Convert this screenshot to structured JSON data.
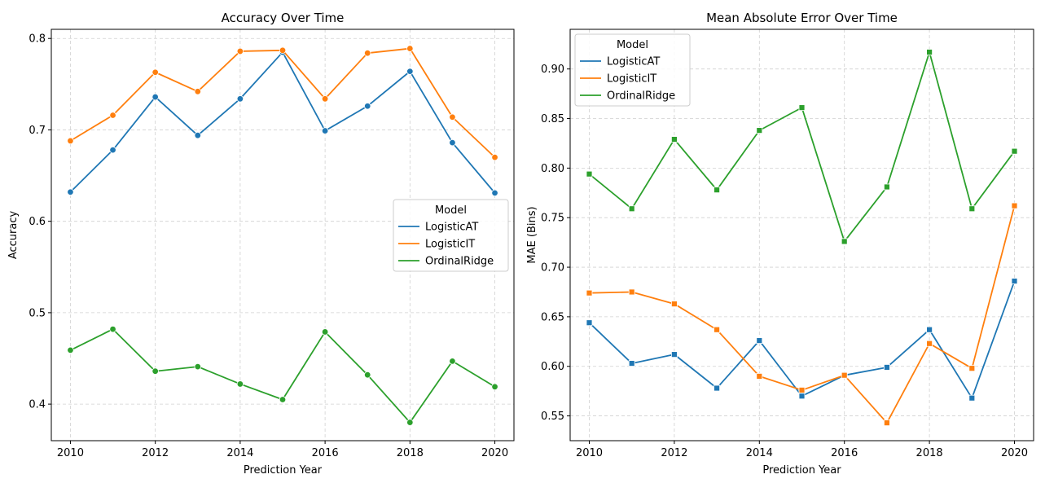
{
  "chart_data": [
    {
      "type": "line",
      "title": "Accuracy Over Time",
      "xlabel": "Prediction Year",
      "ylabel": "Accuracy",
      "xlim": [
        2009.55,
        2020.45
      ],
      "ylim": [
        0.36,
        0.81
      ],
      "xticks": [
        2010,
        2012,
        2014,
        2016,
        2018,
        2020
      ],
      "yticks": [
        0.4,
        0.5,
        0.6,
        0.7,
        0.8
      ],
      "ytick_labels": [
        "0.4",
        "0.5",
        "0.6",
        "0.7",
        "0.8"
      ],
      "grid": true,
      "marker": "circle",
      "legend": {
        "title": "Model",
        "placement": "center-right"
      },
      "x": [
        2010,
        2011,
        2012,
        2013,
        2014,
        2015,
        2016,
        2017,
        2018,
        2019,
        2020
      ],
      "series": [
        {
          "name": "LogisticAT",
          "color": "#1f77b4",
          "values": [
            0.632,
            0.678,
            0.736,
            0.694,
            0.734,
            0.785,
            0.699,
            0.726,
            0.764,
            0.686,
            0.631
          ]
        },
        {
          "name": "LogisticIT",
          "color": "#ff7f0e",
          "values": [
            0.688,
            0.716,
            0.763,
            0.742,
            0.786,
            0.787,
            0.734,
            0.784,
            0.789,
            0.714,
            0.67
          ]
        },
        {
          "name": "OrdinalRidge",
          "color": "#2ca02c",
          "values": [
            0.459,
            0.482,
            0.436,
            0.441,
            0.422,
            0.405,
            0.479,
            0.432,
            0.38,
            0.447,
            0.419
          ]
        }
      ]
    },
    {
      "type": "line",
      "title": "Mean Absolute Error Over Time",
      "xlabel": "Prediction Year",
      "ylabel": "MAE (Bins)",
      "xlim": [
        2009.55,
        2020.45
      ],
      "ylim": [
        0.525,
        0.94
      ],
      "xticks": [
        2010,
        2012,
        2014,
        2016,
        2018,
        2020
      ],
      "yticks": [
        0.55,
        0.6,
        0.65,
        0.7,
        0.75,
        0.8,
        0.85,
        0.9
      ],
      "ytick_labels": [
        "0.55",
        "0.60",
        "0.65",
        "0.70",
        "0.75",
        "0.80",
        "0.85",
        "0.90"
      ],
      "grid": true,
      "marker": "square",
      "legend": {
        "title": "Model",
        "placement": "top-left"
      },
      "x": [
        2010,
        2011,
        2012,
        2013,
        2014,
        2015,
        2016,
        2017,
        2018,
        2019,
        2020
      ],
      "series": [
        {
          "name": "LogisticAT",
          "color": "#1f77b4",
          "values": [
            0.644,
            0.603,
            0.612,
            0.578,
            0.626,
            0.57,
            0.591,
            0.599,
            0.637,
            0.568,
            0.686
          ]
        },
        {
          "name": "LogisticIT",
          "color": "#ff7f0e",
          "values": [
            0.674,
            0.675,
            0.663,
            0.637,
            0.59,
            0.576,
            0.591,
            0.543,
            0.623,
            0.598,
            0.762
          ]
        },
        {
          "name": "OrdinalRidge",
          "color": "#2ca02c",
          "values": [
            0.794,
            0.759,
            0.829,
            0.778,
            0.838,
            0.861,
            0.726,
            0.781,
            0.917,
            0.759,
            0.817
          ]
        }
      ]
    }
  ]
}
